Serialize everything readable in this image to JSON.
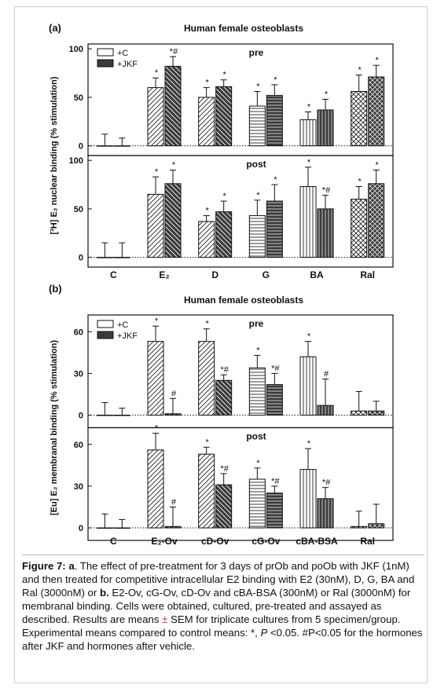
{
  "panels": [
    {
      "label": "(a)",
      "title": "Human female osteoblasts",
      "ylabel": "[³H] E₂ nuclear binding (% stimulation)",
      "legend": [
        "+C",
        "+JKF"
      ],
      "categories": [
        "C",
        "E₂",
        "D",
        "G",
        "BA",
        "Ral"
      ],
      "subplots": [
        {
          "label": "pre",
          "ylim": [
            -10,
            105
          ],
          "yticks": [
            "0",
            "50",
            "100"
          ],
          "series": [
            {
              "name": "+C",
              "values": [
                0,
                60,
                50,
                41,
                27,
                56
              ],
              "errors": [
                12,
                10,
                10,
                15,
                8,
                17
              ],
              "marks": [
                "",
                "*",
                "*",
                "*",
                "*",
                "*"
              ]
            },
            {
              "name": "+JKF",
              "values": [
                0,
                82,
                61,
                52,
                37,
                71
              ],
              "errors": [
                8,
                10,
                7,
                11,
                11,
                12
              ],
              "marks": [
                "",
                "*#",
                "*",
                "*",
                "*",
                "*"
              ]
            }
          ]
        },
        {
          "label": "post",
          "ylim": [
            -10,
            105
          ],
          "yticks": [
            "0",
            "50",
            "100"
          ],
          "series": [
            {
              "name": "+C",
              "values": [
                0,
                65,
                37,
                43,
                73,
                60
              ],
              "errors": [
                15,
                18,
                6,
                16,
                20,
                13
              ],
              "marks": [
                "",
                "*",
                "*",
                "*",
                "*",
                "*"
              ]
            },
            {
              "name": "+JKF",
              "values": [
                0,
                76,
                47,
                58,
                50,
                76
              ],
              "errors": [
                15,
                14,
                11,
                17,
                14,
                14
              ],
              "marks": [
                "",
                "*",
                "*",
                "*",
                "*#",
                "*"
              ]
            }
          ]
        }
      ]
    },
    {
      "label": "(b)",
      "title": "Human female osteoblasts",
      "ylabel": "[Eu] E₂ membranal binding (% stimulation)",
      "legend": [
        "+C",
        "+JKF"
      ],
      "categories": [
        "C",
        "E₂-Ov",
        "cD-Ov",
        "cG-Ov",
        "cBA-BSA",
        "Ral"
      ],
      "subplots": [
        {
          "label": "pre",
          "ylim": [
            -9,
            72
          ],
          "yticks": [
            "0",
            "30",
            "60"
          ],
          "series": [
            {
              "name": "+C",
              "values": [
                0,
                53,
                53,
                34,
                42,
                3
              ],
              "errors": [
                9,
                11,
                9,
                9,
                11,
                14
              ],
              "marks": [
                "",
                "*",
                "*",
                "*",
                "*",
                ""
              ]
            },
            {
              "name": "+JKF",
              "values": [
                0,
                1,
                25,
                22,
                7,
                3
              ],
              "errors": [
                5,
                11,
                4,
                8,
                19,
                7
              ],
              "marks": [
                "",
                "#",
                "*#",
                "*#",
                "#",
                ""
              ]
            }
          ]
        },
        {
          "label": "post",
          "ylim": [
            -9,
            72
          ],
          "yticks": [
            "0",
            "30",
            "60"
          ],
          "series": [
            {
              "name": "+C",
              "values": [
                0,
                56,
                53,
                35,
                42,
                1
              ],
              "errors": [
                10,
                12,
                5,
                8,
                15,
                11
              ],
              "marks": [
                "",
                "*",
                "*",
                "*",
                "*",
                ""
              ]
            },
            {
              "name": "+JKF",
              "values": [
                0,
                1,
                31,
                25,
                21,
                3
              ],
              "errors": [
                6,
                14,
                8,
                5,
                8,
                14
              ],
              "marks": [
                "",
                "#",
                "*#",
                "*#",
                "*#",
                ""
              ]
            }
          ]
        }
      ]
    }
  ],
  "chart_data": [
    {
      "type": "bar",
      "title": "Human female osteoblasts",
      "panel": "(a)",
      "categories": [
        "C",
        "E₂",
        "D",
        "G",
        "BA",
        "Ral"
      ],
      "ylabel": "[³H] E₂ nuclear binding (% stimulation)",
      "series": [
        {
          "name": "+C (pre)",
          "values": [
            0,
            60,
            50,
            41,
            27,
            56
          ]
        },
        {
          "name": "+JKF (pre)",
          "values": [
            0,
            82,
            61,
            52,
            37,
            71
          ]
        },
        {
          "name": "+C (post)",
          "values": [
            0,
            65,
            37,
            43,
            73,
            60
          ]
        },
        {
          "name": "+JKF (post)",
          "values": [
            0,
            76,
            47,
            58,
            50,
            76
          ]
        }
      ],
      "ylim": [
        -10,
        105
      ]
    },
    {
      "type": "bar",
      "title": "Human female osteoblasts",
      "panel": "(b)",
      "categories": [
        "C",
        "E₂-Ov",
        "cD-Ov",
        "cG-Ov",
        "cBA-BSA",
        "Ral"
      ],
      "ylabel": "[Eu] E₂ membranal binding (% stimulation)",
      "series": [
        {
          "name": "+C (pre)",
          "values": [
            0,
            53,
            53,
            34,
            42,
            3
          ]
        },
        {
          "name": "+JKF (pre)",
          "values": [
            0,
            1,
            25,
            22,
            7,
            3
          ]
        },
        {
          "name": "+C (post)",
          "values": [
            0,
            56,
            53,
            35,
            42,
            1
          ]
        },
        {
          "name": "+JKF (post)",
          "values": [
            0,
            1,
            31,
            25,
            21,
            3
          ]
        }
      ],
      "ylim": [
        -9,
        72
      ]
    }
  ],
  "caption": {
    "lead": "Figure 7: ",
    "a_label": "a",
    "a_text": ". The effect of pre-treatment for 3 days of prOb and poOb with JKF (1nM) and then treated for competitive intracellular E2 binding with E2 (30nM), D, G, BA and Ral (3000nM) or ",
    "b_label": "b.",
    "b_text": " E2-Ov, cG-Ov, cD-Ov and cBA-BSA (300nM) or Ral (3000nM) for membranal binding. Cells were obtained, cultured, pre-treated and assayed as described. Results are means ",
    "pm": "±",
    "rest1": " SEM for triplicate cultures from 5 specimen/group. Experimental means compared to control means: *, ",
    "p_italic": "P",
    "rest2": " <0.05. #P<0.05 for the hormones after JKF and hormones after vehicle."
  },
  "colors": {
    "jkf_fill": "#3a3a3a",
    "pm_color": "#c0392b"
  }
}
